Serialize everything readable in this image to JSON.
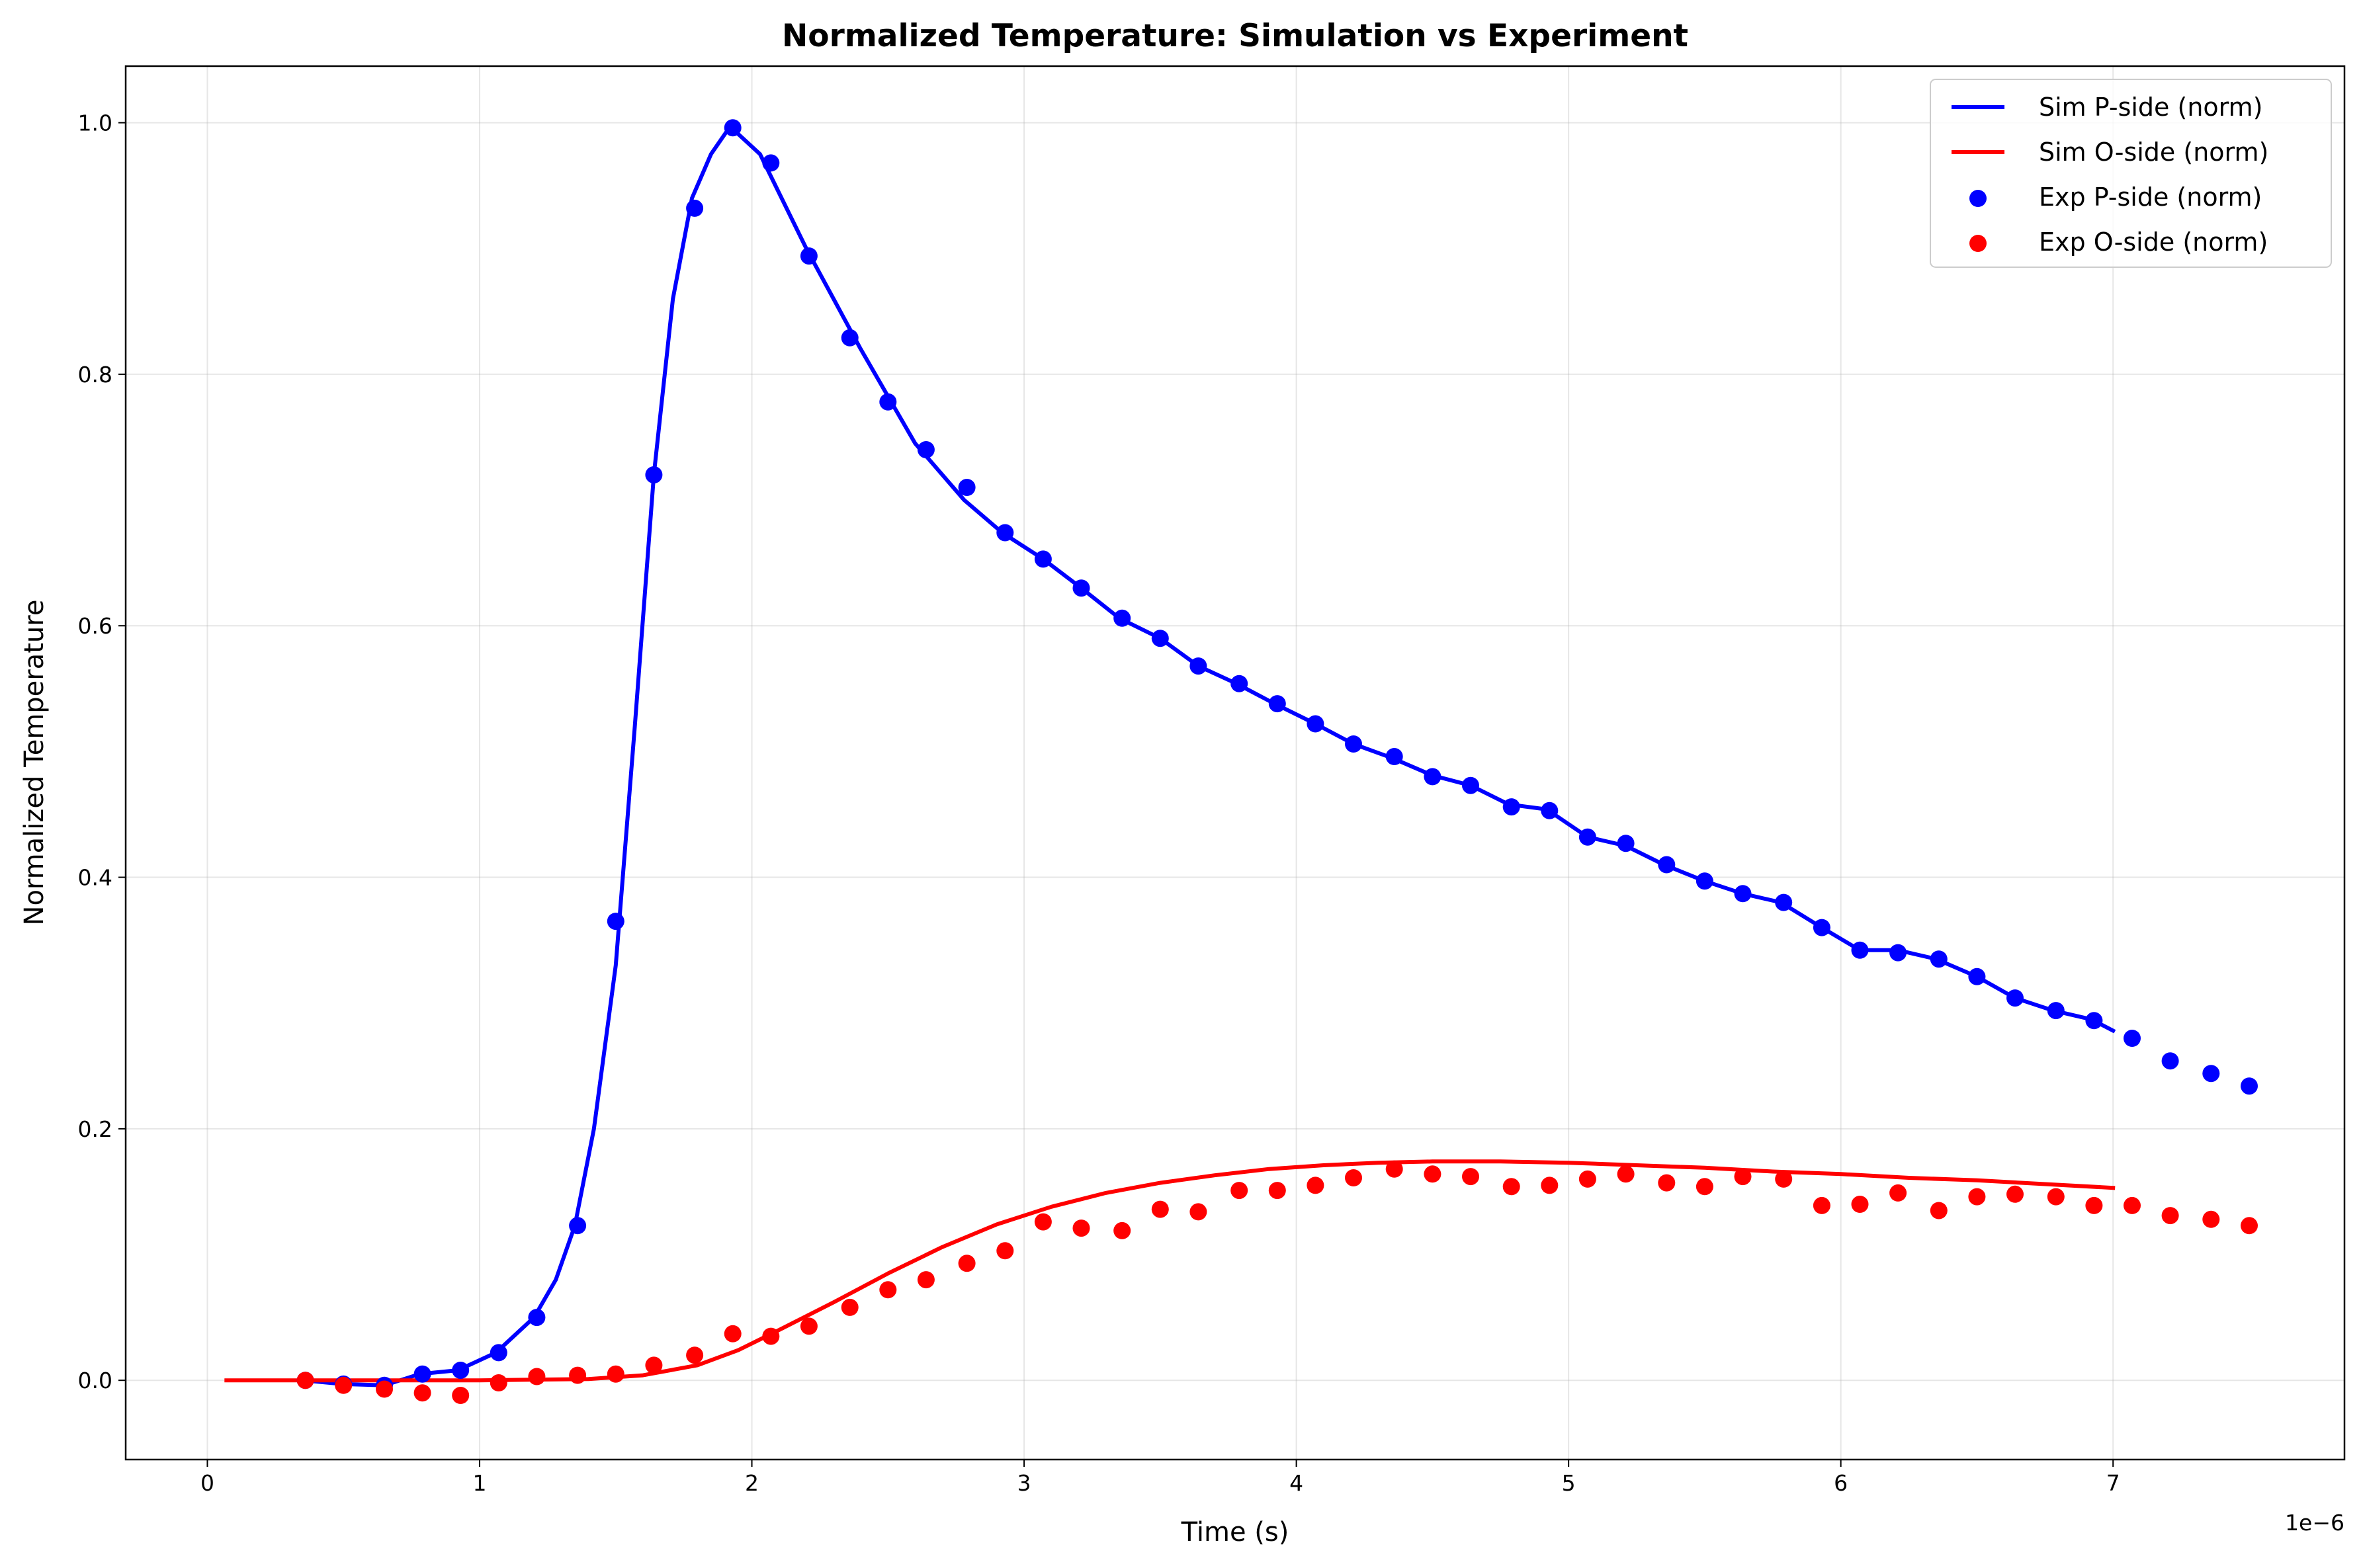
{
  "chart_data": {
    "type": "line",
    "title": "Normalized Temperature: Simulation vs Experiment",
    "xlabel": "Time (s)",
    "ylabel": "Normalized Temperature",
    "x_offset_text": "1e−6",
    "xlim": [
      -0.3,
      7.85
    ],
    "ylim": [
      -0.063,
      1.045
    ],
    "xticks": [
      0,
      1,
      2,
      3,
      4,
      5,
      6,
      7
    ],
    "xtick_labels": [
      "0",
      "1",
      "2",
      "3",
      "4",
      "5",
      "6",
      "7"
    ],
    "yticks": [
      0.0,
      0.2,
      0.4,
      0.6,
      0.8,
      1.0
    ],
    "ytick_labels": [
      "0.0",
      "0.2",
      "0.4",
      "0.6",
      "0.8",
      "1.0"
    ],
    "grid": true,
    "legend_position": "top-right",
    "colors": {
      "p_side": "#0000ff",
      "o_side": "#ff0000"
    },
    "series": [
      {
        "name": "Sim P-side (norm)",
        "kind": "line",
        "color": "#0000ff",
        "x": [
          0.35,
          0.5,
          0.65,
          0.78,
          0.92,
          1.06,
          1.2,
          1.28,
          1.35,
          1.42,
          1.5,
          1.57,
          1.64,
          1.71,
          1.78,
          1.85,
          1.92,
          2.03,
          2.2,
          2.4,
          2.6,
          2.78,
          2.92,
          3.07,
          3.21,
          3.35,
          3.5,
          3.64,
          3.78,
          3.92,
          4.07,
          4.21,
          4.35,
          4.5,
          4.64,
          4.78,
          4.92,
          5.07,
          5.21,
          5.35,
          5.5,
          5.64,
          5.78,
          5.93,
          6.07,
          6.21,
          6.35,
          6.5,
          6.64,
          6.78,
          6.92,
          7.0
        ],
        "y": [
          0.0,
          -0.003,
          -0.004,
          0.005,
          0.008,
          0.022,
          0.05,
          0.08,
          0.123,
          0.2,
          0.33,
          0.52,
          0.72,
          0.86,
          0.94,
          0.975,
          0.997,
          0.975,
          0.9,
          0.82,
          0.745,
          0.7,
          0.674,
          0.653,
          0.63,
          0.606,
          0.59,
          0.568,
          0.554,
          0.538,
          0.522,
          0.506,
          0.495,
          0.481,
          0.473,
          0.458,
          0.454,
          0.432,
          0.425,
          0.41,
          0.397,
          0.387,
          0.38,
          0.36,
          0.342,
          0.342,
          0.335,
          0.321,
          0.304,
          0.294,
          0.287,
          0.278
        ]
      },
      {
        "name": "Sim O-side (norm)",
        "kind": "line",
        "color": "#ff0000",
        "x": [
          0.07,
          0.5,
          1.0,
          1.4,
          1.6,
          1.8,
          1.95,
          2.1,
          2.3,
          2.5,
          2.7,
          2.9,
          3.1,
          3.3,
          3.5,
          3.7,
          3.9,
          4.1,
          4.3,
          4.5,
          4.75,
          5.0,
          5.25,
          5.5,
          5.75,
          6.0,
          6.25,
          6.5,
          6.75,
          7.0
        ],
        "y": [
          0.0,
          0.0,
          0.0,
          0.001,
          0.004,
          0.012,
          0.024,
          0.04,
          0.062,
          0.085,
          0.106,
          0.124,
          0.138,
          0.149,
          0.157,
          0.163,
          0.168,
          0.171,
          0.173,
          0.174,
          0.174,
          0.173,
          0.171,
          0.169,
          0.166,
          0.164,
          0.161,
          0.159,
          0.156,
          0.153
        ]
      },
      {
        "name": "Exp P-side (norm)",
        "kind": "scatter",
        "color": "#0000ff",
        "x": [
          0.36,
          0.5,
          0.65,
          0.79,
          0.93,
          1.07,
          1.21,
          1.36,
          1.5,
          1.64,
          1.79,
          1.93,
          2.07,
          2.21,
          2.36,
          2.5,
          2.64,
          2.79,
          2.93,
          3.07,
          3.21,
          3.36,
          3.5,
          3.64,
          3.79,
          3.93,
          4.07,
          4.21,
          4.36,
          4.5,
          4.64,
          4.79,
          4.93,
          5.07,
          5.21,
          5.36,
          5.5,
          5.64,
          5.79,
          5.93,
          6.07,
          6.21,
          6.36,
          6.5,
          6.64,
          6.79,
          6.93,
          7.07,
          7.21,
          7.36,
          7.5
        ],
        "y": [
          0.0,
          -0.003,
          -0.004,
          0.005,
          0.008,
          0.022,
          0.05,
          0.123,
          0.365,
          0.72,
          0.932,
          0.996,
          0.968,
          0.894,
          0.829,
          0.778,
          0.74,
          0.71,
          0.674,
          0.653,
          0.63,
          0.606,
          0.59,
          0.568,
          0.554,
          0.538,
          0.522,
          0.506,
          0.496,
          0.48,
          0.473,
          0.456,
          0.453,
          0.432,
          0.427,
          0.41,
          0.397,
          0.387,
          0.38,
          0.36,
          0.342,
          0.34,
          0.335,
          0.321,
          0.304,
          0.294,
          0.286,
          0.272,
          0.254,
          0.244,
          0.234
        ]
      },
      {
        "name": "Exp O-side (norm)",
        "kind": "scatter",
        "color": "#ff0000",
        "x": [
          0.36,
          0.5,
          0.65,
          0.79,
          0.93,
          1.07,
          1.21,
          1.36,
          1.5,
          1.64,
          1.79,
          1.93,
          2.07,
          2.21,
          2.36,
          2.5,
          2.64,
          2.79,
          2.93,
          3.07,
          3.21,
          3.36,
          3.5,
          3.64,
          3.79,
          3.93,
          4.07,
          4.21,
          4.36,
          4.5,
          4.64,
          4.79,
          4.93,
          5.07,
          5.21,
          5.36,
          5.5,
          5.64,
          5.79,
          5.93,
          6.07,
          6.21,
          6.36,
          6.5,
          6.64,
          6.79,
          6.93,
          7.07,
          7.21,
          7.36,
          7.5
        ],
        "y": [
          0.0,
          -0.004,
          -0.007,
          -0.01,
          -0.012,
          -0.002,
          0.003,
          0.004,
          0.005,
          0.012,
          0.02,
          0.037,
          0.035,
          0.043,
          0.058,
          0.072,
          0.08,
          0.093,
          0.103,
          0.126,
          0.121,
          0.119,
          0.136,
          0.134,
          0.151,
          0.151,
          0.155,
          0.161,
          0.168,
          0.164,
          0.162,
          0.154,
          0.155,
          0.16,
          0.164,
          0.157,
          0.154,
          0.162,
          0.16,
          0.139,
          0.14,
          0.149,
          0.135,
          0.146,
          0.148,
          0.146,
          0.139,
          0.139,
          0.131,
          0.128,
          0.123
        ]
      }
    ]
  }
}
